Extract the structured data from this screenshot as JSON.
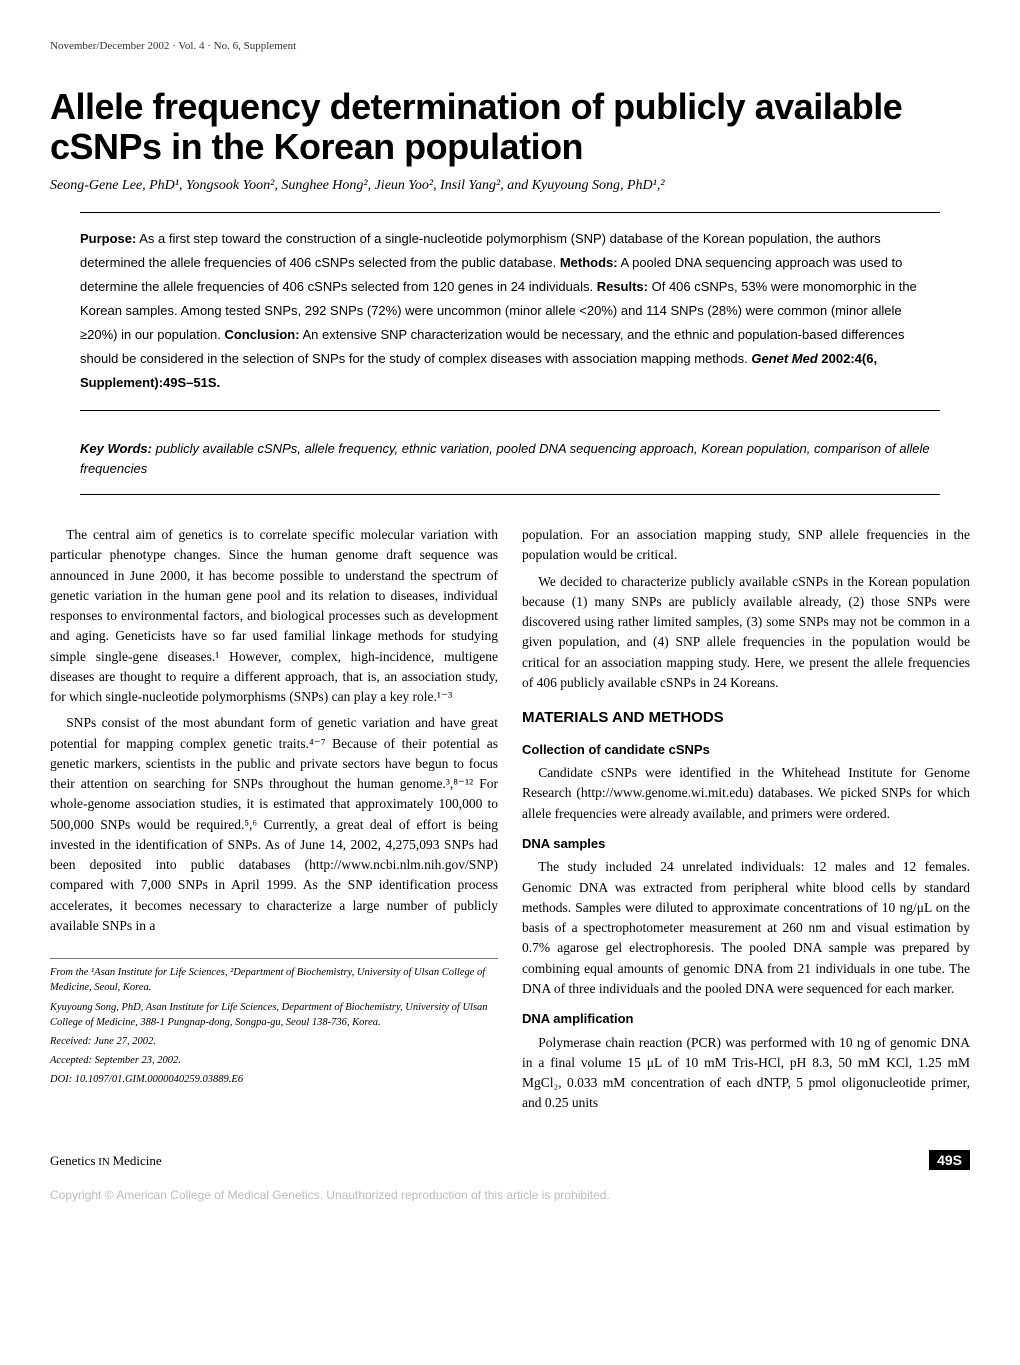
{
  "header": {
    "issue_line": "November/December 2002 · Vol. 4 · No. 6, Supplement"
  },
  "title": "Allele frequency determination of publicly available cSNPs in the Korean population",
  "authors_html": "Seong-Gene Lee, PhD¹, Yongsook Yoon², Sunghee Hong², Jieun Yoo², Insil Yang², and Kyuyoung Song, PhD¹,²",
  "abstract": {
    "purpose_label": "Purpose:",
    "purpose": " As a first step toward the construction of a single-nucleotide polymorphism (SNP) database of the Korean population, the authors determined the allele frequencies of 406 cSNPs selected from the public database. ",
    "methods_label": "Methods:",
    "methods": " A pooled DNA sequencing approach was used to determine the allele frequencies of 406 cSNPs selected from 120 genes in 24 individuals. ",
    "results_label": "Results:",
    "results": " Of 406 cSNPs, 53% were monomorphic in the Korean samples. Among tested SNPs, 292 SNPs (72%) were uncommon (minor allele <20%) and 114 SNPs (28%) were common (minor allele ≥20%) in our population. ",
    "conclusion_label": "Conclusion:",
    "conclusion": " An extensive SNP characterization would be necessary, and the ethnic and population-based differences should be considered in the selection of SNPs for the study of complex diseases with association mapping methods. ",
    "citation_italic": "Genet Med",
    "citation_bold": " 2002:4(6, Supplement):49S–51S."
  },
  "keywords": {
    "label": "Key Words:",
    "text": " publicly available cSNPs, allele frequency, ethnic variation, pooled DNA sequencing approach, Korean population, comparison of allele frequencies"
  },
  "left_col": {
    "p1": "The central aim of genetics is to correlate specific molecular variation with particular phenotype changes. Since the human genome draft sequence was announced in June 2000, it has become possible to understand the spectrum of genetic variation in the human gene pool and its relation to diseases, individual responses to environmental factors, and biological processes such as development and aging. Geneticists have so far used familial linkage methods for studying simple single-gene diseases.¹ However, complex, high-incidence, multigene diseases are thought to require a different approach, that is, an association study, for which single-nucleotide polymorphisms (SNPs) can play a key role.¹⁻³",
    "p2": "SNPs consist of the most abundant form of genetic variation and have great potential for mapping complex genetic traits.⁴⁻⁷ Because of their potential as genetic markers, scientists in the public and private sectors have begun to focus their attention on searching for SNPs throughout the human genome.³,⁸⁻¹² For whole-genome association studies, it is estimated that approximately 100,000 to 500,000 SNPs would be required.⁵,⁶ Currently, a great deal of effort is being invested in the identification of SNPs. As of June 14, 2002, 4,275,093 SNPs had been deposited into public databases (http://www.ncbi.nlm.nih.gov/SNP) compared with 7,000 SNPs in April 1999. As the SNP identification process accelerates, it becomes necessary to characterize a large number of publicly available SNPs in a"
  },
  "footnotes": {
    "affil": "From the ¹Asan Institute for Life Sciences, ²Department of Biochemistry, University of Ulsan College of Medicine, Seoul, Korea.",
    "corr": "Kyuyoung Song, PhD, Asan Institute for Life Sciences, Department of Biochemistry, University of Ulsan College of Medicine, 388-1 Pungnap-dong, Songpa-gu, Seoul 138-736, Korea.",
    "received": "Received: June 27, 2002.",
    "accepted": "Accepted: September 23, 2002.",
    "doi": "DOI: 10.1097/01.GIM.0000040259.03889.E6"
  },
  "right_col": {
    "p1": "population. For an association mapping study, SNP allele frequencies in the population would be critical.",
    "p2": "We decided to characterize publicly available cSNPs in the Korean population because (1) many SNPs are publicly available already, (2) those SNPs were discovered using rather limited samples, (3) some SNPs may not be common in a given population, and (4) SNP allele frequencies in the population would be critical for an association mapping study. Here, we present the allele frequencies of 406 publicly available cSNPs in 24 Koreans.",
    "materials_heading": "MATERIALS AND METHODS",
    "sub1_heading": "Collection of candidate cSNPs",
    "sub1_text": "Candidate cSNPs were identified in the Whitehead Institute for Genome Research (http://www.genome.wi.mit.edu) databases. We picked SNPs for which allele frequencies were already available, and primers were ordered.",
    "sub2_heading": "DNA samples",
    "sub2_text": "The study included 24 unrelated individuals: 12 males and 12 females. Genomic DNA was extracted from peripheral white blood cells by standard methods. Samples were diluted to approximate concentrations of 10 ng/μL on the basis of a spectrophotometer measurement at 260 nm and visual estimation by 0.7% agarose gel electrophoresis. The pooled DNA sample was prepared by combining equal amounts of genomic DNA from 21 individuals in one tube. The DNA of three individuals and the pooled DNA were sequenced for each marker.",
    "sub3_heading": "DNA amplification",
    "sub3_text": "Polymerase chain reaction (PCR) was performed with 10 ng of genomic DNA in a final volume 15 μL of 10 mM Tris-HCl, pH 8.3, 50 mM KCl, 1.25 mM MgCl₂, 0.033 mM concentration of each dNTP, 5 pmol oligonucleotide primer, and 0.25 units"
  },
  "footer": {
    "left_genetics": "Genetics",
    "left_in": " IN ",
    "left_medicine": "Medicine",
    "page_number": "49S"
  },
  "copyright": "Copyright © American College of Medical Genetics. Unauthorized reproduction of this article is prohibited."
}
